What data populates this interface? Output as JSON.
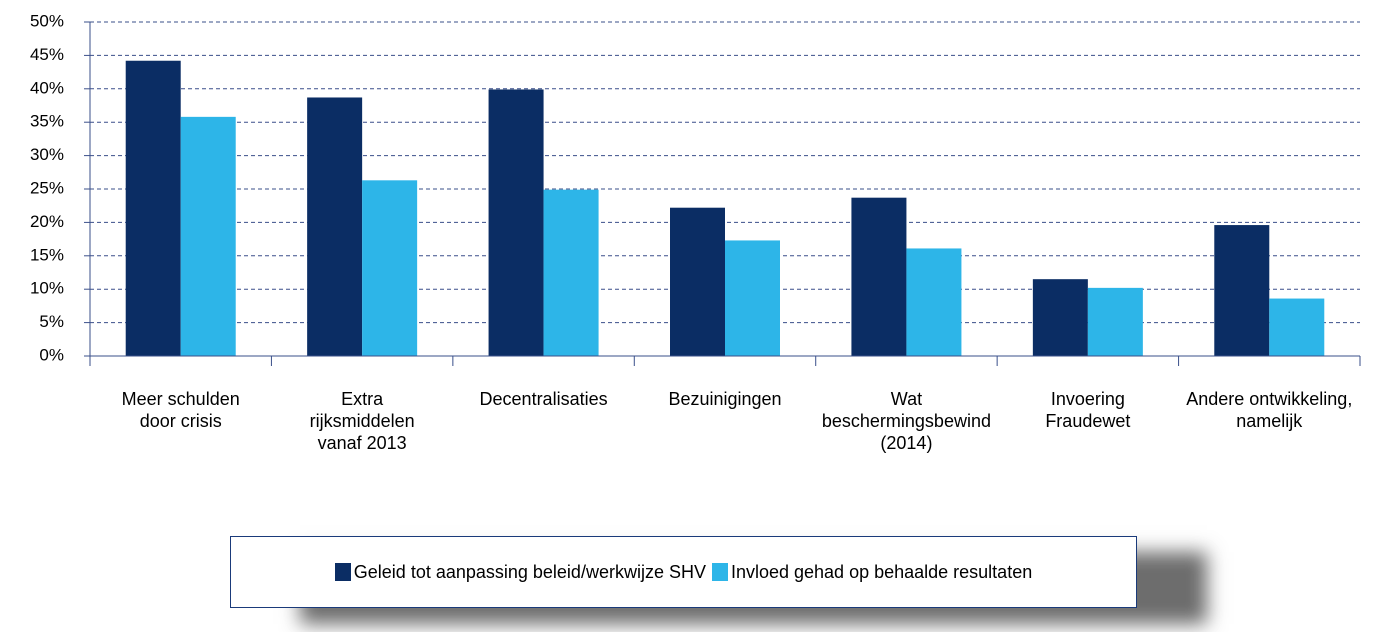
{
  "chart_data": {
    "type": "bar",
    "categories": [
      "Meer schulden\ndoor crisis",
      "Extra\nrijksmiddelen\nvanaf 2013",
      "Decentralisaties",
      "Bezuinigingen",
      "Wat\nbeschermingsbewind\n(2014)",
      "Invoering\nFraudewet",
      "Andere ontwikkeling,\nnamelijk"
    ],
    "series": [
      {
        "name": "Geleid tot aanpassing beleid/werkwijze SHV",
        "color": "#0b2d64",
        "values": [
          44.2,
          38.7,
          39.9,
          22.2,
          23.7,
          11.5,
          19.6
        ]
      },
      {
        "name": "Invloed gehad op behaalde resultaten",
        "color": "#2db5e8",
        "values": [
          35.8,
          26.3,
          24.9,
          17.3,
          16.1,
          10.2,
          8.6
        ]
      }
    ],
    "ylim": [
      0,
      50
    ],
    "yticks": [
      {
        "value": 0,
        "label": "0%"
      },
      {
        "value": 5,
        "label": "5%"
      },
      {
        "value": 10,
        "label": "10%"
      },
      {
        "value": 15,
        "label": "15%"
      },
      {
        "value": 20,
        "label": "20%"
      },
      {
        "value": 25,
        "label": "25%"
      },
      {
        "value": 30,
        "label": "30%"
      },
      {
        "value": 35,
        "label": "35%"
      },
      {
        "value": 40,
        "label": "40%"
      },
      {
        "value": 45,
        "label": "45%"
      },
      {
        "value": 50,
        "label": "50%"
      }
    ],
    "grid": true
  }
}
